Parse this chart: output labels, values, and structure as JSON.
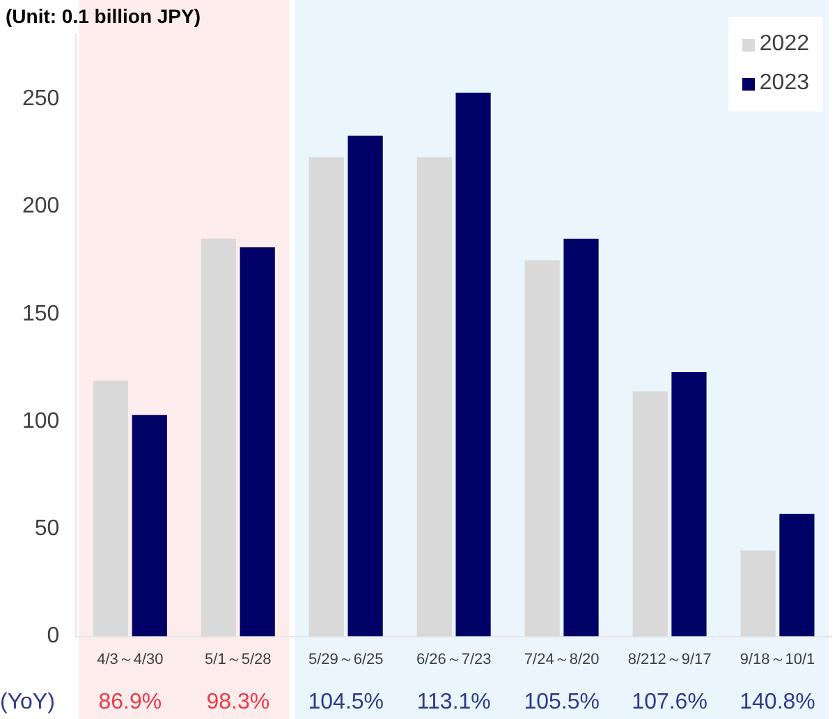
{
  "chart_data": {
    "type": "bar",
    "ylabel": "(Unit: 0.1 billion JPY)",
    "categories": [
      "4/3～4/30",
      "5/1～5/28",
      "5/29～6/25",
      "6/26～7/23",
      "7/24～8/20",
      "8/212～9/17",
      "9/18～10/1"
    ],
    "series": [
      {
        "name": "2022",
        "color": "#d9d9d9",
        "values": [
          119,
          185,
          223,
          223,
          175,
          114,
          40
        ]
      },
      {
        "name": "2023",
        "color": "#000066",
        "values": [
          103,
          181,
          233,
          253,
          185,
          123,
          57
        ]
      }
    ],
    "ylim": [
      0,
      280
    ],
    "yticks": [
      0,
      50,
      100,
      150,
      200,
      250
    ],
    "grid": false,
    "legend": "top right",
    "bands": [
      {
        "axis": "x",
        "from": "4/3～4/30",
        "to": "5/1～5/28",
        "color": "#fdecec"
      },
      {
        "axis": "x",
        "from": "5/29～6/25",
        "to": "9/18～10/1",
        "color": "#eaf5fc"
      }
    ],
    "annotations": [
      "(YoY)",
      "86.9%",
      "98.3%",
      "104.5%",
      "113.1%",
      "105.5%",
      "107.6%",
      "140.8%"
    ]
  }
}
